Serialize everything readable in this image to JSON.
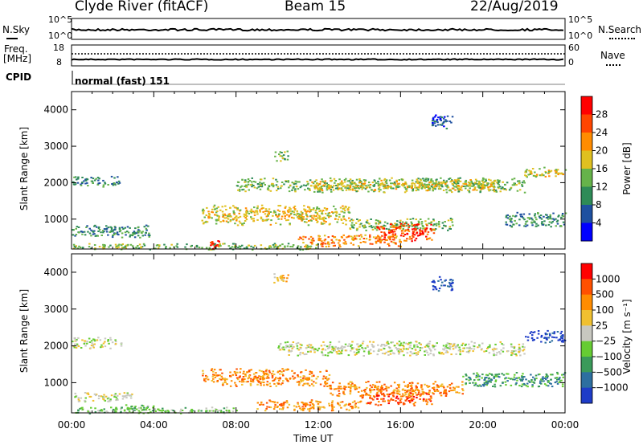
{
  "header": {
    "station": "Clyde River (fitACF)",
    "beam": "Beam 15",
    "date": "22/Aug/2019"
  },
  "top_panels": {
    "nsky_label": "N.Sky",
    "nsearch_label": "N.Search",
    "freq_label_1": "Freq.",
    "freq_label_2": "[MHz]",
    "nave_label": "Nave",
    "cpid_label": "CPID",
    "cpid_value": "normal (fast) 151",
    "noise_ticks_left": [
      "10^5",
      "10^0"
    ],
    "noise_ticks_right": [
      "10^5",
      "10^0"
    ],
    "freq_ticks_left": [
      "18",
      "8"
    ],
    "freq_ticks_right": [
      "60",
      "0"
    ]
  },
  "chart_data": [
    {
      "type": "heatmap",
      "name": "power",
      "ylabel": "Slant Range [km]",
      "xlabel": "Time UT",
      "xlim": [
        "00:00",
        "24:00"
      ],
      "ylim": [
        180,
        4500
      ],
      "x_ticks": [
        "00:00",
        "04:00",
        "08:00",
        "12:00",
        "16:00",
        "20:00",
        "00:00"
      ],
      "y_ticks": [
        1000,
        2000,
        3000,
        4000
      ],
      "colorbar": {
        "label": "Power [dB]",
        "ticks": [
          "4",
          "8",
          "12",
          "16",
          "20",
          "24",
          "28"
        ],
        "colors": [
          "#0000ff",
          "#1e50a0",
          "#2e8b57",
          "#66b34a",
          "#e0c020",
          "#ff8c00",
          "#ff4500",
          "#ff0000"
        ]
      },
      "regions": [
        {
          "t0": 0.0,
          "t1": 2.3,
          "r0": 1900,
          "r1": 2200,
          "level": 2
        },
        {
          "t0": 8.0,
          "t1": 22.0,
          "r0": 1750,
          "r1": 2150,
          "level": 3
        },
        {
          "t0": 11.5,
          "t1": 20.5,
          "r0": 1800,
          "r1": 2100,
          "level": 4
        },
        {
          "t0": 22.0,
          "t1": 24.0,
          "r0": 2150,
          "r1": 2450,
          "level": 4
        },
        {
          "t0": 0.0,
          "t1": 3.8,
          "r0": 500,
          "r1": 850,
          "level": 2
        },
        {
          "t0": 6.3,
          "t1": 13.5,
          "r0": 850,
          "r1": 1400,
          "level": 4
        },
        {
          "t0": 13.5,
          "t1": 18.5,
          "r0": 700,
          "r1": 1050,
          "level": 3
        },
        {
          "t0": 14.8,
          "t1": 17.6,
          "r0": 400,
          "r1": 900,
          "level": 6
        },
        {
          "t0": 16.5,
          "t1": 17.2,
          "r0": 550,
          "r1": 800,
          "level": 7
        },
        {
          "t0": 11.0,
          "t1": 16.0,
          "r0": 250,
          "r1": 600,
          "level": 5
        },
        {
          "t0": 0.0,
          "t1": 12.0,
          "r0": 180,
          "r1": 350,
          "level": 3
        },
        {
          "t0": 6.7,
          "t1": 7.2,
          "r0": 200,
          "r1": 450,
          "level": 7
        },
        {
          "t0": 21.0,
          "t1": 24.0,
          "r0": 800,
          "r1": 1200,
          "level": 2
        },
        {
          "t0": 9.8,
          "t1": 10.5,
          "r0": 2600,
          "r1": 2900,
          "level": 3
        },
        {
          "t0": 17.5,
          "t1": 18.5,
          "r0": 3500,
          "r1": 3900,
          "level": 1
        }
      ]
    },
    {
      "type": "heatmap",
      "name": "velocity",
      "ylabel": "Slant Range [km]",
      "xlabel": "Time UT",
      "xlim": [
        "00:00",
        "24:00"
      ],
      "ylim": [
        180,
        4500
      ],
      "x_ticks": [
        "00:00",
        "04:00",
        "08:00",
        "12:00",
        "16:00",
        "20:00",
        "00:00"
      ],
      "y_ticks": [
        1000,
        2000,
        3000,
        4000
      ],
      "colorbar": {
        "label": "Velocity [m s⁻¹]",
        "ticks": [
          "1000",
          "500",
          "100",
          "25",
          "−25",
          "−100",
          "−500",
          "−1000"
        ],
        "colors": [
          "#1e3cc8",
          "#2d6fa0",
          "#3a9a5a",
          "#66cc33",
          "#c8c8c0",
          "#f0c030",
          "#ff8c00",
          "#ff5000",
          "#ff0000"
        ]
      },
      "regions": [
        {
          "t0": 0.0,
          "t1": 2.4,
          "r0": 1950,
          "r1": 2250,
          "level": 4
        },
        {
          "t0": 10.0,
          "t1": 22.0,
          "r0": 1750,
          "r1": 2150,
          "level": 4
        },
        {
          "t0": 22.0,
          "t1": 24.0,
          "r0": 2100,
          "r1": 2450,
          "level": 0
        },
        {
          "t0": 0.0,
          "t1": 3.0,
          "r0": 500,
          "r1": 750,
          "level": 4
        },
        {
          "t0": 6.3,
          "t1": 12.5,
          "r0": 900,
          "r1": 1400,
          "level": 6
        },
        {
          "t0": 12.5,
          "t1": 19.0,
          "r0": 650,
          "r1": 1050,
          "level": 6
        },
        {
          "t0": 14.0,
          "t1": 17.5,
          "r0": 400,
          "r1": 750,
          "level": 7
        },
        {
          "t0": 9.0,
          "t1": 14.0,
          "r0": 250,
          "r1": 550,
          "level": 6
        },
        {
          "t0": 0.0,
          "t1": 8.0,
          "r0": 180,
          "r1": 350,
          "level": 3
        },
        {
          "t0": 2.5,
          "t1": 4.0,
          "r0": 250,
          "r1": 450,
          "level": 3
        },
        {
          "t0": 19.0,
          "t1": 24.0,
          "r0": 900,
          "r1": 1300,
          "level": 2
        },
        {
          "t0": 17.5,
          "t1": 18.5,
          "r0": 3500,
          "r1": 3900,
          "level": 0
        },
        {
          "t0": 9.8,
          "t1": 10.5,
          "r0": 3700,
          "r1": 4000,
          "level": 5
        }
      ]
    }
  ]
}
